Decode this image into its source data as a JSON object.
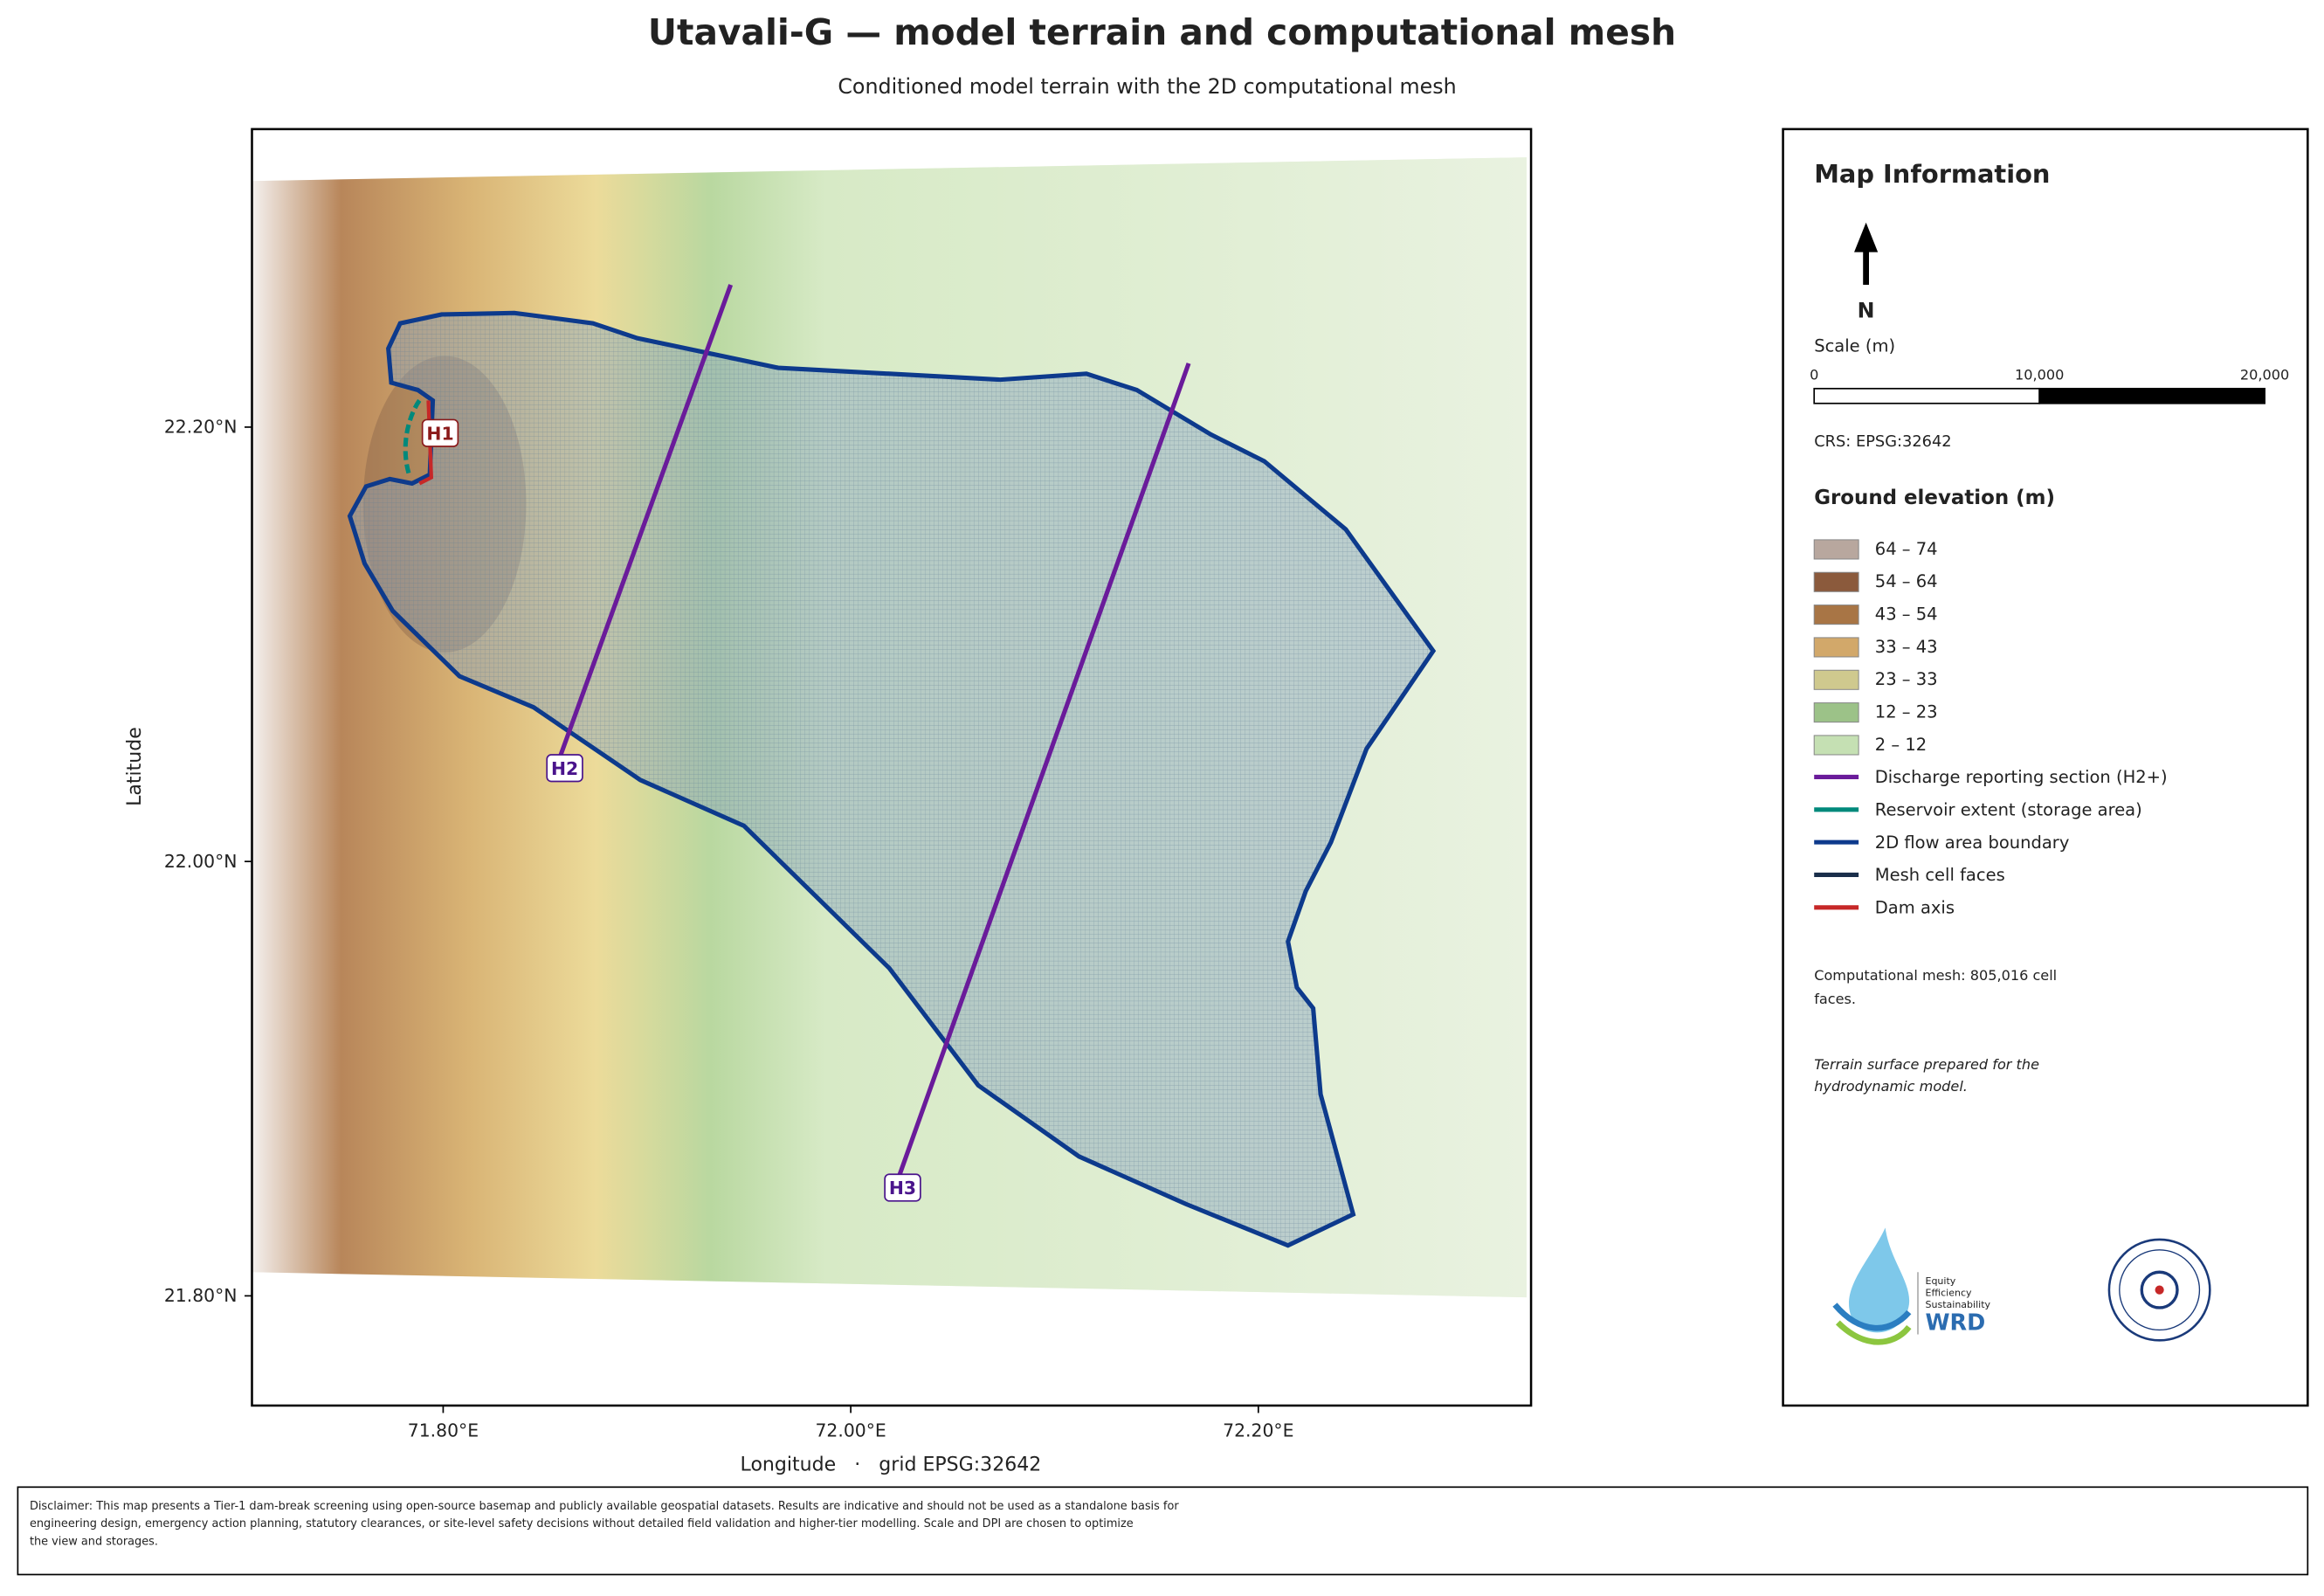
{
  "header": {
    "title": "Utavali-G — model terrain and computational mesh",
    "subtitle": "Conditioned model terrain with the 2D computational mesh"
  },
  "map": {
    "lat_ticks": [
      "22.20°N",
      "22.00°N",
      "21.80°N"
    ],
    "lon_ticks": [
      "71.80°E",
      "72.00°E",
      "72.20°E"
    ],
    "y_label": "Latitude",
    "x_label": "Longitude   ·   grid EPSG:32642",
    "section_labels": [
      "H1",
      "H2",
      "H3"
    ]
  },
  "panel": {
    "title": "Map Information",
    "north": "N",
    "scale_title": "Scale (m)",
    "scale_labels": [
      "0",
      "10,000",
      "20,000"
    ],
    "crs": "CRS: EPSG:32642",
    "elevation_title": "Ground elevation (m)",
    "elevation_classes": [
      {
        "label": "64 – 74",
        "color": "#b8a79e"
      },
      {
        "label": "54 – 64",
        "color": "#8b5a3c"
      },
      {
        "label": "43 – 54",
        "color": "#a87545"
      },
      {
        "label": "33 – 43",
        "color": "#d2a86a"
      },
      {
        "label": "23 – 33",
        "color": "#cfc98e"
      },
      {
        "label": "12 – 23",
        "color": "#9cc288"
      },
      {
        "label": "2 – 12",
        "color": "#c5e0b3"
      }
    ],
    "line_items": [
      {
        "label": "Discharge reporting section (H2+)",
        "color": "#6a1b9a"
      },
      {
        "label": "Reservoir extent (storage area)",
        "color": "#00897b"
      },
      {
        "label": "2D flow area boundary",
        "color": "#0d3a8c"
      },
      {
        "label": "Mesh cell faces",
        "color": "#1a2e4a"
      },
      {
        "label": "Dam axis",
        "color": "#c62828"
      }
    ],
    "mesh_note": [
      "Computational mesh: 805,016 cell",
      "faces."
    ],
    "terrain_note": [
      "Terrain surface prepared for the",
      "hydrodynamic model."
    ],
    "logo_text": [
      "Equity",
      "Efficiency",
      "Sustainability",
      "WRD"
    ]
  },
  "footer": {
    "disclaimer": [
      "Disclaimer: This map presents a Tier-1 dam-break screening using open-source basemap and publicly available geospatial datasets. Results are indicative and should not be used as a standalone basis for",
      "engineering design, emergency action planning, statutory clearances, or site-level safety decisions without detailed field validation and higher-tier modelling. Scale and DPI are chosen to optimize",
      "the view and storages."
    ]
  }
}
